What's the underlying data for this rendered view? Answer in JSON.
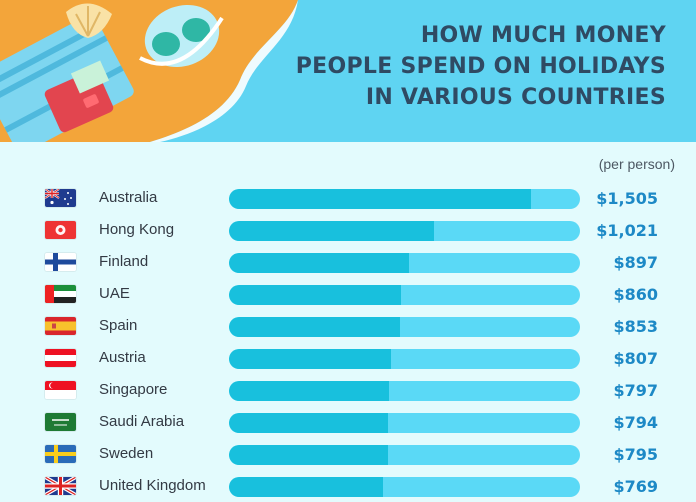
{
  "title_lines": [
    "HOW MUCH MONEY",
    "PEOPLE SPEND ON HOLIDAYS",
    "IN VARIOUS COUNTRIES"
  ],
  "unit_note": "(per person)",
  "colors": {
    "header_sky": "#5fd4f2",
    "background": "#e3fbfd",
    "bar_track": "#5ad9f6",
    "bar_fill": "#18c0dd",
    "title": "#2f4a63",
    "value": "#1d89c6"
  },
  "chart_data": {
    "type": "bar",
    "orientation": "horizontal",
    "title": "HOW MUCH MONEY PEOPLE SPEND ON HOLIDAYS IN VARIOUS COUNTRIES",
    "xlabel": "",
    "ylabel": "",
    "unit": "(per person)",
    "xlim": [
      0,
      1750
    ],
    "grid": false,
    "categories": [
      "Australia",
      "Hong Kong",
      "Finland",
      "UAE",
      "Spain",
      "Austria",
      "Singapore",
      "Saudi Arabia",
      "Sweden",
      "United Kingdom"
    ],
    "values": [
      1505,
      1021,
      897,
      860,
      853,
      807,
      797,
      794,
      795,
      769
    ],
    "value_labels": [
      "$1,505",
      "$1,021",
      "$897",
      "$860",
      "$853",
      "$807",
      "$797",
      "$794",
      "$795",
      "$769"
    ],
    "flags": [
      "australia-flag",
      "hong-kong-flag",
      "finland-flag",
      "uae-flag",
      "spain-flag",
      "austria-flag",
      "singapore-flag",
      "saudi-arabia-flag",
      "sweden-flag",
      "united-kingdom-flag"
    ]
  }
}
